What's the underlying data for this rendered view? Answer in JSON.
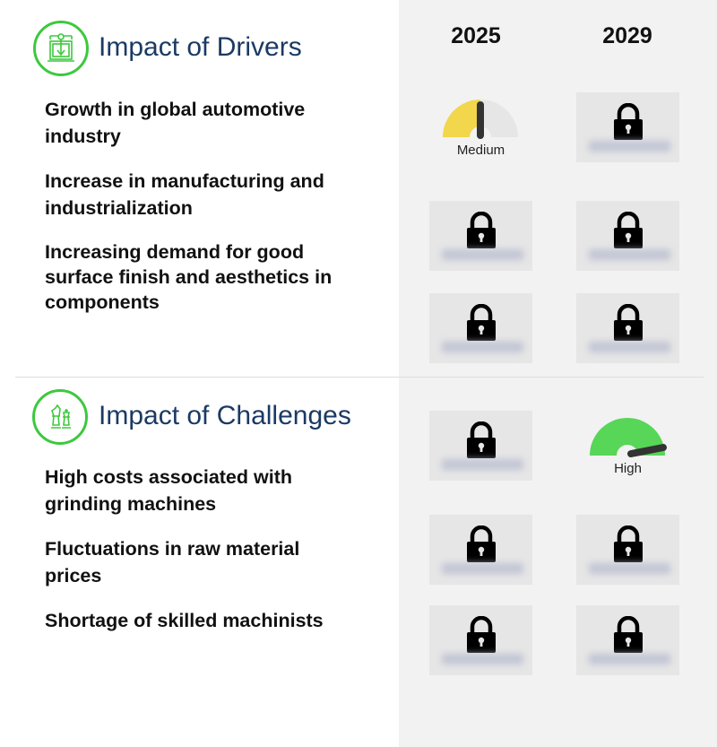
{
  "columns": [
    "2025",
    "2029"
  ],
  "colors": {
    "accent": "#3ec83e",
    "title": "#1b3a63",
    "medium": "#f2d64b",
    "high": "#57d657",
    "panel": "#f2f2f2"
  },
  "drivers": {
    "title": "Impact of Drivers",
    "icon": "machine-icon",
    "items": [
      {
        "label": "Growth in global automotive industry",
        "y2025": "Medium",
        "y2029": "locked"
      },
      {
        "label": "Increase in manufacturing and industrialization",
        "y2025": "locked",
        "y2029": "locked"
      },
      {
        "label": "Increasing demand for good surface finish and aesthetics in components",
        "y2025": "locked",
        "y2029": "locked"
      }
    ]
  },
  "challenges": {
    "title": "Impact of Challenges",
    "icon": "chess-icon",
    "items": [
      {
        "label": "High costs associated with grinding machines",
        "y2025": "locked",
        "y2029": "High"
      },
      {
        "label": "Fluctuations in raw material prices",
        "y2025": "locked",
        "y2029": "locked"
      },
      {
        "label": "Shortage of skilled machinists",
        "y2025": "locked",
        "y2029": "locked"
      }
    ]
  }
}
